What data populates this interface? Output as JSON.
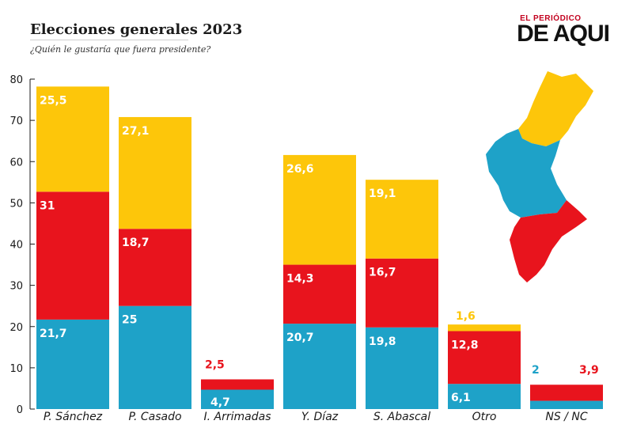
{
  "header": {
    "title": "Elecciones generales 2023",
    "subtitle": "¿Quién le gustaría que fuera presidente?"
  },
  "brand": {
    "small": "EL PERIÓDICO",
    "big": "DE AQUI"
  },
  "chart_data": {
    "type": "bar",
    "stacked": true,
    "ylim": [
      0,
      80
    ],
    "yticks": [
      0,
      10,
      20,
      30,
      40,
      50,
      60,
      70,
      80
    ],
    "grid": false,
    "legend": "none",
    "categories": [
      "P. Sánchez",
      "P. Casado",
      "I. Arrimadas",
      "Y. Díaz",
      "S. Abascal",
      "Otro",
      "NS / NC"
    ],
    "series": [
      {
        "color": "#1ea2c8",
        "values": [
          21.7,
          25,
          4.7,
          20.7,
          19.8,
          6.1,
          2
        ]
      },
      {
        "color": "#e8141d",
        "values": [
          31,
          18.7,
          2.5,
          14.3,
          16.7,
          12.8,
          3.9
        ]
      },
      {
        "color": "#fdc60a",
        "values": [
          25.5,
          27.1,
          0,
          26.6,
          19.1,
          1.6,
          0
        ]
      }
    ],
    "data_labels": [
      [
        "21,7",
        "31",
        "25,5"
      ],
      [
        "25",
        "18,7",
        "27,1"
      ],
      [
        "4,7",
        "2,5",
        ""
      ],
      [
        "20,7",
        "14,3",
        "26,6"
      ],
      [
        "19,8",
        "16,7",
        "19,1"
      ],
      [
        "6,1",
        "12,8",
        "1,6"
      ],
      [
        "2",
        "3,9",
        ""
      ]
    ]
  },
  "map": {
    "regions": [
      {
        "color": "#fdc60a"
      },
      {
        "color": "#1ea2c8"
      },
      {
        "color": "#e8141d"
      }
    ]
  }
}
